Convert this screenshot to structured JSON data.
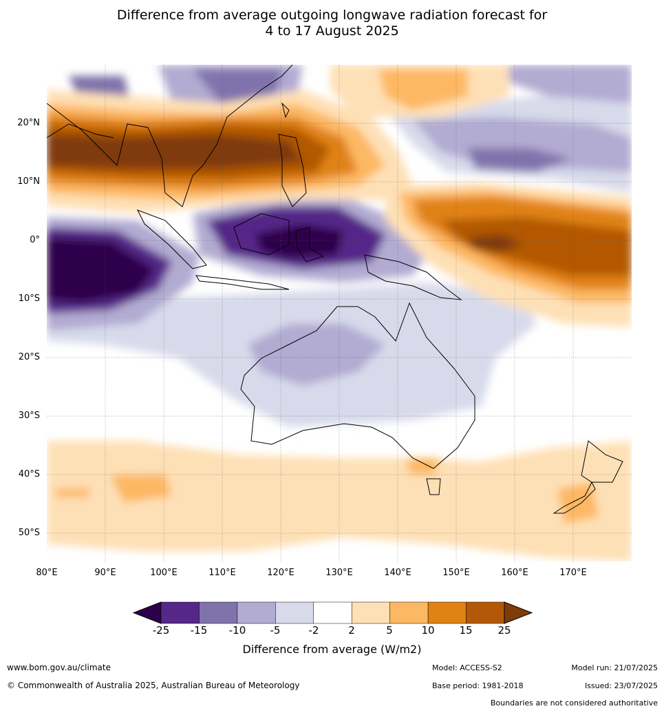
{
  "title": {
    "line1": "Difference from average outgoing longwave radiation forecast for",
    "line2": "4 to 17 August 2025"
  },
  "axes": {
    "lat_labels": [
      "20°N",
      "10°N",
      "0°",
      "10°S",
      "20°S",
      "30°S",
      "40°S",
      "50°S"
    ],
    "lon_labels": [
      "80°E",
      "90°E",
      "100°E",
      "110°E",
      "120°E",
      "130°E",
      "140°E",
      "150°E",
      "160°E",
      "170°E"
    ]
  },
  "legend": {
    "ticks": [
      "-25",
      "-15",
      "-10",
      "-5",
      "-2",
      "2",
      "5",
      "10",
      "15",
      "25"
    ],
    "colors": [
      "#2d004b",
      "#542788",
      "#8073ac",
      "#b2abd2",
      "#d8daeb",
      "#ffffff",
      "#fee0b6",
      "#fdb863",
      "#e08214",
      "#b35806",
      "#7f3b08"
    ],
    "label": "Difference from average (W/m2)"
  },
  "footer": {
    "website": "www.bom.gov.au/climate",
    "copyright": "© Commonwealth of Australia 2025, Australian Bureau of Meteorology",
    "model": "Model: ACCESS-S2",
    "base_period": "Base period: 1981-2018",
    "model_run": "Model run: 21/07/2025",
    "issued": "Issued: 23/07/2025",
    "disclaimer": "Boundaries are not considered authoritative"
  }
}
